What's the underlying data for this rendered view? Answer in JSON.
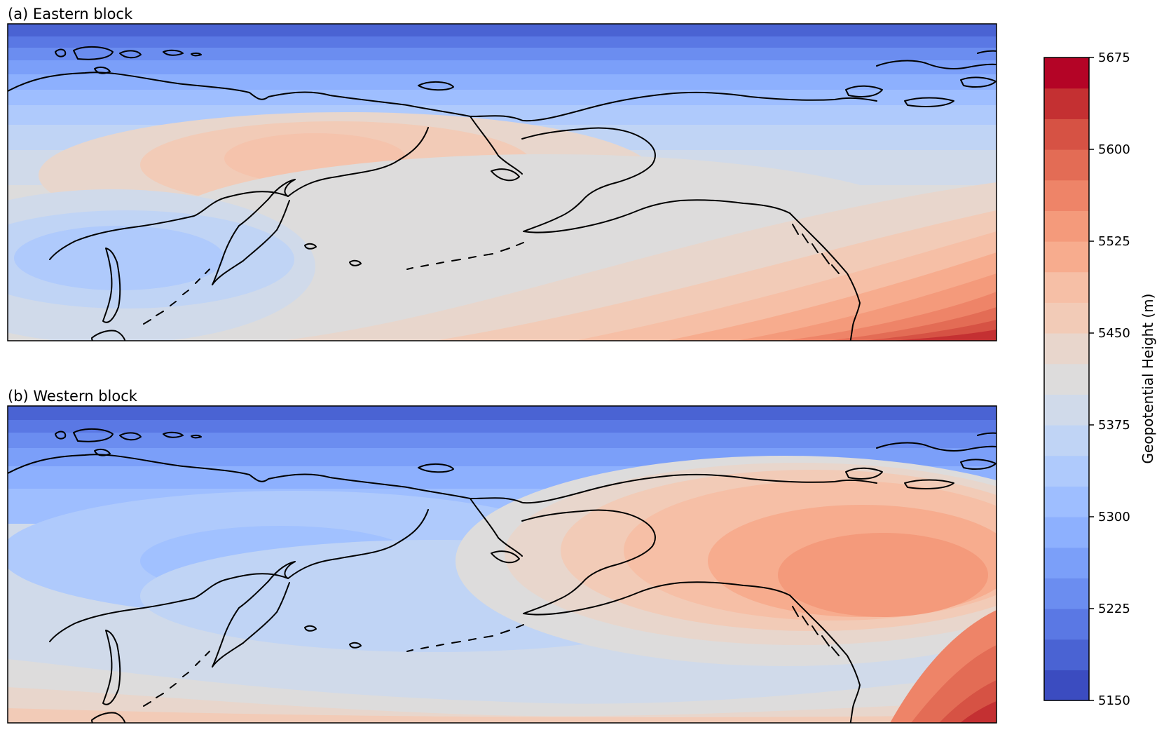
{
  "panels": [
    {
      "title": "(a) Eastern block"
    },
    {
      "title": "(b) Western block"
    }
  ],
  "colorbar": {
    "label": "Geopotential Height (m)",
    "min": 5150,
    "max": 5675,
    "step": 25,
    "ticks": [
      "5150",
      "5225",
      "5300",
      "5375",
      "5450",
      "5525",
      "5600",
      "5675"
    ],
    "colormap": "coolwarm",
    "colors": [
      "#3b4cc0",
      "#4a63d3",
      "#5a78e4",
      "#6b8df0",
      "#7b9ff9",
      "#8db0fe",
      "#9ebeff",
      "#afcafc",
      "#c0d4f5",
      "#d0daea",
      "#dddcdc",
      "#e8d6cc",
      "#f2cbb7",
      "#f6bfa6",
      "#f7ac8e",
      "#f49a7b",
      "#ee8468",
      "#e36c55",
      "#d65244",
      "#c43032",
      "#b40426"
    ]
  }
}
